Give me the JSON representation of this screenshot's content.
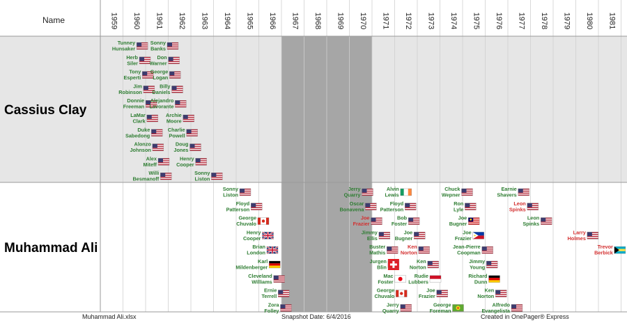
{
  "header": {
    "name_column": "Name"
  },
  "footer": {
    "file": "Muhammad Ali.xlsx",
    "snapshot": "Snapshot Date: 6/4/2016",
    "created": "Created in OnePager® Express"
  },
  "colors": {
    "win": "#2e7d32",
    "loss": "#d32f2f",
    "gap_band": "#a6a6a6",
    "clay_lane": "#e6e6e6",
    "ali_lane": "#ffffff"
  },
  "chart_data": {
    "type": "timeline",
    "x_axis": {
      "years": [
        1959,
        1960,
        1961,
        1962,
        1963,
        1964,
        1965,
        1966,
        1967,
        1968,
        1969,
        1970,
        1971,
        1972,
        1973,
        1974,
        1975,
        1976,
        1977,
        1978,
        1979,
        1980,
        1981
      ]
    },
    "shaded_period": [
      1967,
      1970
    ],
    "lanes": [
      {
        "label": "Cassius Clay",
        "fights": [
          {
            "opponent": "Tunney\nHunsaker",
            "year": 1960.85,
            "flag": "us",
            "result": "win"
          },
          {
            "opponent": "Herb\nSiler",
            "year": 1960.97,
            "flag": "us",
            "result": "win"
          },
          {
            "opponent": "Tony\nEsperti",
            "year": 1961.1,
            "flag": "us",
            "result": "win"
          },
          {
            "opponent": "Jim\nRobinson",
            "year": 1961.15,
            "flag": "us",
            "result": "win"
          },
          {
            "opponent": "Donnie\nFreeman",
            "year": 1961.25,
            "flag": "us",
            "result": "win"
          },
          {
            "opponent": "LaMar\nClark",
            "year": 1961.3,
            "flag": "us",
            "result": "win"
          },
          {
            "opponent": "Duke\nSabedong",
            "year": 1961.5,
            "flag": "us",
            "result": "win"
          },
          {
            "opponent": "Alonzo\nJohnson",
            "year": 1961.55,
            "flag": "us",
            "result": "win"
          },
          {
            "opponent": "Alex\nMiteff",
            "year": 1961.8,
            "flag": "us",
            "result": "win"
          },
          {
            "opponent": "Willi\nBesmanoff",
            "year": 1961.9,
            "flag": "us",
            "result": "win"
          },
          {
            "opponent": "Sonny\nBanks",
            "year": 1962.2,
            "flag": "us",
            "result": "win"
          },
          {
            "opponent": "Don\nWarner",
            "year": 1962.25,
            "flag": "us",
            "result": "win"
          },
          {
            "opponent": "George\nLogan",
            "year": 1962.3,
            "flag": "us",
            "result": "win"
          },
          {
            "opponent": "Billy\nDaniels",
            "year": 1962.4,
            "flag": "us",
            "result": "win"
          },
          {
            "opponent": "Alejandro\nLavorante",
            "year": 1962.55,
            "flag": "us",
            "result": "win"
          },
          {
            "opponent": "Archie\nMoore",
            "year": 1962.9,
            "flag": "us",
            "result": "win"
          },
          {
            "opponent": "Charlie\nPowell",
            "year": 1963.05,
            "flag": "us",
            "result": "win"
          },
          {
            "opponent": "Doug\nJones",
            "year": 1963.2,
            "flag": "us",
            "result": "win"
          },
          {
            "opponent": "Henry\nCooper",
            "year": 1963.45,
            "flag": "us",
            "result": "win"
          },
          {
            "opponent": "Sonny\nListon",
            "year": 1964.15,
            "flag": "us",
            "result": "win"
          }
        ]
      },
      {
        "label": "Muhammad Ali",
        "fights": [
          {
            "opponent": "Sonny\nListon",
            "year": 1965.4,
            "flag": "us",
            "result": "win"
          },
          {
            "opponent": "Floyd\nPatterson",
            "year": 1965.9,
            "flag": "us",
            "result": "win"
          },
          {
            "opponent": "George\nChuvalo",
            "year": 1966.2,
            "flag": "ca",
            "result": "win"
          },
          {
            "opponent": "Henry\nCooper",
            "year": 1966.4,
            "flag": "gb",
            "result": "win"
          },
          {
            "opponent": "Brian\nLondon",
            "year": 1966.6,
            "flag": "gb",
            "result": "win"
          },
          {
            "opponent": "Karl\nMildenberger",
            "year": 1966.7,
            "flag": "de",
            "result": "win"
          },
          {
            "opponent": "Cleveland\nWilliams",
            "year": 1966.9,
            "flag": "us",
            "result": "win"
          },
          {
            "opponent": "Ernie\nTerrell",
            "year": 1967.1,
            "flag": "us",
            "result": "win"
          },
          {
            "opponent": "Zora\nFolley",
            "year": 1967.2,
            "flag": "us",
            "result": "win"
          },
          {
            "opponent": "Jerry\nQuarry",
            "year": 1970.8,
            "flag": "us",
            "result": "win"
          },
          {
            "opponent": "Oscar\nBonavena",
            "year": 1970.95,
            "flag": "us",
            "result": "win"
          },
          {
            "opponent": "Joe\nFrazier",
            "year": 1971.2,
            "flag": "us",
            "result": "loss"
          },
          {
            "opponent": "Jimmy\nEllis",
            "year": 1971.55,
            "flag": "us",
            "result": "win"
          },
          {
            "opponent": "Buster\nMathis",
            "year": 1971.9,
            "flag": "us",
            "result": "win"
          },
          {
            "opponent": "Jurgen\nBlin",
            "year": 1971.95,
            "flag": "ch",
            "result": "win"
          },
          {
            "opponent": "Mac\nFoster",
            "year": 1972.25,
            "flag": "jp",
            "result": "win"
          },
          {
            "opponent": "George\nChuvalo",
            "year": 1972.3,
            "flag": "ca",
            "result": "win"
          },
          {
            "opponent": "Jerry\nQuarry",
            "year": 1972.5,
            "flag": "us",
            "result": "win"
          },
          {
            "opponent": "Alvin\nLewis",
            "year": 1972.5,
            "flag": "ie",
            "result": "win"
          },
          {
            "opponent": "Floyd\nPatterson",
            "year": 1972.7,
            "flag": "us",
            "result": "win"
          },
          {
            "opponent": "Bob\nFoster",
            "year": 1972.85,
            "flag": "us",
            "result": "win"
          },
          {
            "opponent": "Joe\nBugner",
            "year": 1973.1,
            "flag": "us",
            "result": "win"
          },
          {
            "opponent": "Ken\nNorton",
            "year": 1973.3,
            "flag": "us",
            "result": "loss"
          },
          {
            "opponent": "Ken\nNorton",
            "year": 1973.7,
            "flag": "us",
            "result": "win"
          },
          {
            "opponent": "Rudie\nLubbers",
            "year": 1973.8,
            "flag": "id",
            "result": "win"
          },
          {
            "opponent": "Joe\nFrazier",
            "year": 1974.1,
            "flag": "us",
            "result": "win"
          },
          {
            "opponent": "George\nForeman",
            "year": 1974.8,
            "flag": "zr",
            "result": "win"
          },
          {
            "opponent": "Chuck\nWepner",
            "year": 1975.2,
            "flag": "us",
            "result": "win"
          },
          {
            "opponent": "Ron\nLyle",
            "year": 1975.35,
            "flag": "us",
            "result": "win"
          },
          {
            "opponent": "Joe\nBugner",
            "year": 1975.5,
            "flag": "my",
            "result": "win"
          },
          {
            "opponent": "Joe\nFrazier",
            "year": 1975.7,
            "flag": "ph",
            "result": "win"
          },
          {
            "opponent": "Jean-Pierre\nCoopman",
            "year": 1976.1,
            "flag": "us",
            "result": "win"
          },
          {
            "opponent": "Jimmy\nYoung",
            "year": 1976.3,
            "flag": "us",
            "result": "win"
          },
          {
            "opponent": "Richard\nDunn",
            "year": 1976.4,
            "flag": "de",
            "result": "win"
          },
          {
            "opponent": "Ken\nNorton",
            "year": 1976.7,
            "flag": "us",
            "result": "win"
          },
          {
            "opponent": "Alfredo\nEvangelista",
            "year": 1977.4,
            "flag": "us",
            "result": "win"
          },
          {
            "opponent": "Earnie\nShavers",
            "year": 1977.7,
            "flag": "us",
            "result": "win"
          },
          {
            "opponent": "Leon\nSpinks",
            "year": 1978.1,
            "flag": "us",
            "result": "loss"
          },
          {
            "opponent": "Leon\nSpinks",
            "year": 1978.7,
            "flag": "us",
            "result": "win"
          },
          {
            "opponent": "Larry\nHolmes",
            "year": 1980.75,
            "flag": "us",
            "result": "loss"
          },
          {
            "opponent": "Trevor\nBerbick",
            "year": 1981.95,
            "flag": "bs",
            "result": "loss"
          }
        ]
      }
    ]
  }
}
